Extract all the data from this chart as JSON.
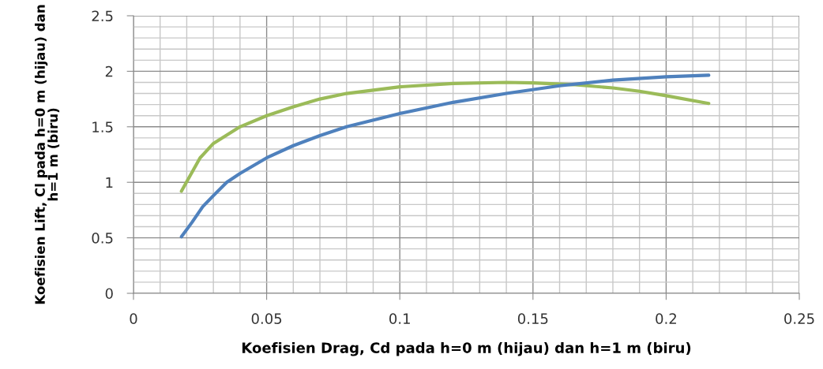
{
  "chart_data": {
    "type": "line",
    "xlabel": "Koefisien Drag, Cd pada h=0 m (hijau) dan h=1 m (biru)",
    "ylabel": "Koefisien Lift, Cl pada h=0 m (hijau) dan\nh=1 m (biru)",
    "xlim": [
      0,
      0.25
    ],
    "xticks": [
      {
        "value": 0,
        "label": "0"
      },
      0.05,
      0.1,
      0.15,
      0.2,
      0.25
    ],
    "ylim": [
      0,
      2.5
    ],
    "yticks": [
      {
        "value": 0,
        "label": "0"
      },
      0.5,
      {
        "value": 1,
        "label": "1"
      },
      1.5,
      {
        "value": 2,
        "label": "2"
      },
      2.5
    ],
    "grid": true,
    "marker": "none",
    "line_style": "solid",
    "series": [
      {
        "color": "#9bbb59",
        "x": [
          0.018,
          0.025,
          0.03,
          0.04,
          0.05,
          0.06,
          0.07,
          0.08,
          0.1,
          0.12,
          0.14,
          0.15,
          0.165,
          0.18,
          0.19,
          0.2,
          0.216
        ],
        "values": [
          0.92,
          1.22,
          1.35,
          1.5,
          1.6,
          1.68,
          1.75,
          1.8,
          1.86,
          1.89,
          1.9,
          1.895,
          1.88,
          1.85,
          1.82,
          1.78,
          1.71
        ]
      },
      {
        "color": "#4f81bd",
        "x": [
          0.018,
          0.022,
          0.026,
          0.03,
          0.035,
          0.04,
          0.05,
          0.06,
          0.07,
          0.08,
          0.1,
          0.12,
          0.14,
          0.16,
          0.18,
          0.2,
          0.216
        ],
        "values": [
          0.51,
          0.64,
          0.78,
          0.88,
          1.0,
          1.08,
          1.22,
          1.33,
          1.42,
          1.5,
          1.62,
          1.72,
          1.8,
          1.87,
          1.92,
          1.95,
          1.965
        ]
      }
    ]
  }
}
